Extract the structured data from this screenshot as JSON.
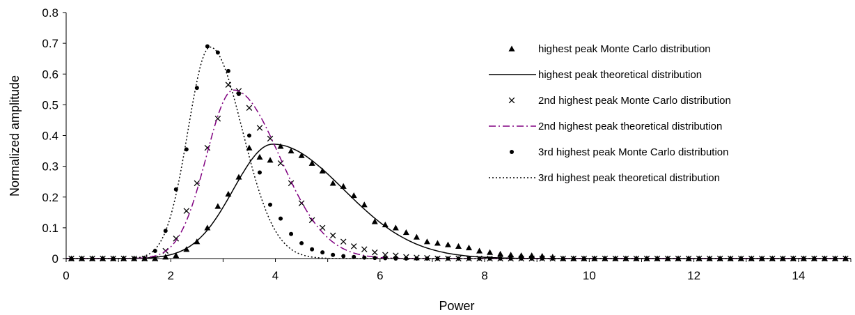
{
  "chart_data": {
    "type": "scatter",
    "title": "",
    "xlabel": "Power",
    "ylabel": "Normalized amplitude",
    "xlim": [
      0,
      15
    ],
    "ylim": [
      0,
      0.8
    ],
    "x_ticks": [
      "0",
      "2",
      "4",
      "6",
      "8",
      "10",
      "12",
      "14"
    ],
    "y_ticks": [
      "0",
      "0.1",
      "0.2",
      "0.3",
      "0.4",
      "0.5",
      "0.6",
      "0.7",
      "0.8"
    ],
    "grid": false,
    "legend_position": "top-right",
    "series": [
      {
        "name": "highest peak Monte Carlo distribution",
        "kind": "markers",
        "marker": "triangle",
        "color": "#000000",
        "x": [
          1.1,
          1.3,
          1.5,
          1.7,
          1.9,
          2.1,
          2.3,
          2.5,
          2.7,
          2.9,
          3.1,
          3.3,
          3.5,
          3.7,
          3.9,
          4.1,
          4.3,
          4.5,
          4.7,
          4.9,
          5.1,
          5.3,
          5.5,
          5.7,
          5.9,
          6.1,
          6.3,
          6.5,
          6.7,
          6.9,
          7.1,
          7.3,
          7.5,
          7.7,
          7.9,
          8.1,
          8.3,
          8.5,
          8.7,
          8.9,
          9.1,
          9.3
        ],
        "y": [
          0,
          0,
          0,
          0,
          0.005,
          0.01,
          0.03,
          0.055,
          0.1,
          0.17,
          0.21,
          0.265,
          0.36,
          0.33,
          0.32,
          0.365,
          0.35,
          0.335,
          0.31,
          0.285,
          0.245,
          0.235,
          0.205,
          0.175,
          0.12,
          0.11,
          0.1,
          0.085,
          0.07,
          0.055,
          0.05,
          0.045,
          0.04,
          0.035,
          0.025,
          0.02,
          0.015,
          0.012,
          0.01,
          0.01,
          0.008,
          0.005
        ]
      },
      {
        "name": "highest peak theoretical distribution",
        "kind": "line",
        "dash": "solid",
        "color": "#000000",
        "peak": 3.95,
        "amplitude": 0.372,
        "sigma_left": 0.75,
        "sigma_right": 1.35
      },
      {
        "name": "2nd highest peak Monte Carlo distribution",
        "kind": "markers",
        "marker": "x",
        "color": "#000000",
        "x": [
          1.3,
          1.5,
          1.7,
          1.9,
          2.1,
          2.3,
          2.5,
          2.7,
          2.9,
          3.1,
          3.3,
          3.5,
          3.7,
          3.9,
          4.1,
          4.3,
          4.5,
          4.7,
          4.9,
          5.1,
          5.3,
          5.5,
          5.7,
          5.9,
          6.1,
          6.3,
          6.5,
          6.7,
          6.9,
          7.1,
          7.3,
          7.5,
          7.7
        ],
        "y": [
          0,
          0,
          0,
          0.025,
          0.065,
          0.155,
          0.245,
          0.36,
          0.455,
          0.565,
          0.545,
          0.49,
          0.425,
          0.39,
          0.31,
          0.245,
          0.18,
          0.125,
          0.1,
          0.075,
          0.055,
          0.04,
          0.03,
          0.02,
          0.012,
          0.01,
          0.005,
          0.003,
          0.002,
          0,
          0,
          0,
          0
        ]
      },
      {
        "name": "2nd highest peak theoretical distribution",
        "kind": "line",
        "dash": "dash-dot",
        "color": "#800080",
        "peak": 3.2,
        "amplitude": 0.548,
        "sigma_left": 0.52,
        "sigma_right": 0.88
      },
      {
        "name": "3rd highest peak Monte Carlo distribution",
        "kind": "markers",
        "marker": "circle",
        "color": "#000000",
        "x": [
          1.3,
          1.5,
          1.7,
          1.9,
          2.1,
          2.3,
          2.5,
          2.7,
          2.9,
          3.1,
          3.3,
          3.5,
          3.7,
          3.9,
          4.1,
          4.3,
          4.5,
          4.7,
          4.9,
          5.1,
          5.3,
          5.5,
          5.7,
          5.9,
          6.1,
          6.3,
          6.5,
          6.7,
          6.9,
          7.1,
          7.3,
          7.5,
          7.7
        ],
        "y": [
          0,
          0,
          0.025,
          0.09,
          0.225,
          0.355,
          0.555,
          0.69,
          0.67,
          0.61,
          0.535,
          0.4,
          0.28,
          0.175,
          0.13,
          0.08,
          0.05,
          0.03,
          0.02,
          0.012,
          0.008,
          0.005,
          0.003,
          0.002,
          0.001,
          0,
          0,
          0,
          0,
          0,
          0,
          0,
          0
        ]
      },
      {
        "name": "3rd highest peak theoretical distribution",
        "kind": "line",
        "dash": "dotted",
        "color": "#000000",
        "peak": 2.75,
        "amplitude": 0.688,
        "sigma_left": 0.42,
        "sigma_right": 0.62
      }
    ]
  }
}
